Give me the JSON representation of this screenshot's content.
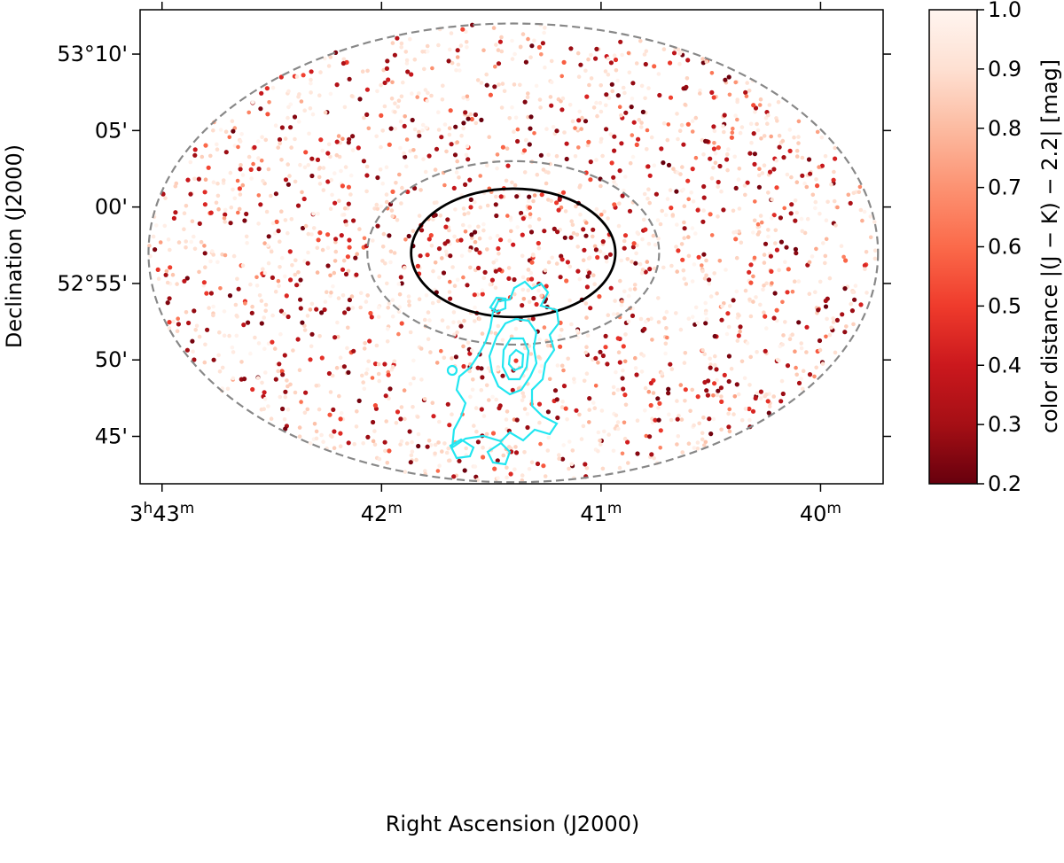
{
  "chart_data": {
    "type": "scatter",
    "projection": "sky (RA/Dec, J2000)",
    "xlabel": "Right Ascension (J2000)",
    "ylabel": "Declination (J2000)",
    "colorbar_label": "color distance |(J − K) − 2.2| [mag]",
    "colorbar": {
      "range": [
        0.2,
        1.0
      ],
      "ticks": [
        0.2,
        0.3,
        0.4,
        0.5,
        0.6,
        0.7,
        0.8,
        0.9,
        1.0
      ],
      "tick_labels": [
        "0.2",
        "0.3",
        "0.4",
        "0.5",
        "0.6",
        "0.7",
        "0.8",
        "0.9",
        "1.0"
      ],
      "colormap": "Reds (reversed)",
      "color_low": "#67000d",
      "color_high": "#fff5f0"
    },
    "ra_range_min": [
      43.1,
      39.715
    ],
    "dec_range_arcmin": [
      -18.1,
      12.9
    ],
    "dec_reference": "53°00'",
    "x_ticks": [
      {
        "value_min": 43,
        "label": "3h43m",
        "main": "3",
        "sup": "h",
        "main2": "43",
        "sup2": "m"
      },
      {
        "value_min": 42,
        "label": "42m",
        "main": "42",
        "sup": "m"
      },
      {
        "value_min": 41,
        "label": "41m",
        "main": "41",
        "sup": "m"
      },
      {
        "value_min": 40,
        "label": "40m",
        "main": "40",
        "sup": "m"
      }
    ],
    "y_ticks": [
      {
        "value_arcmin": 10,
        "label": "53°10'"
      },
      {
        "value_arcmin": 5,
        "label": "05'"
      },
      {
        "value_arcmin": 0,
        "label": "00'"
      },
      {
        "value_arcmin": -5,
        "label": "52°55'"
      },
      {
        "value_arcmin": -10,
        "label": "50'"
      },
      {
        "value_arcmin": -15,
        "label": "45'"
      }
    ],
    "center": {
      "ra_min": 41.4,
      "dec_arcmin": -3.0
    },
    "circles": [
      {
        "name": "outer-annulus",
        "radius_arcmin": 15,
        "style": "dashed",
        "color": "#888888"
      },
      {
        "name": "inner-annulus",
        "radius_arcmin": 6,
        "style": "dashed",
        "color": "#888888"
      },
      {
        "name": "cluster-radius",
        "radius_arcmin": 4.2,
        "style": "solid",
        "color": "#000000"
      }
    ],
    "contour_color": "#22e6f0",
    "scatter": {
      "n_points_approx": 2200,
      "field": "uniform within outer dashed circle",
      "note": "each point colored by its color distance; values 0.2–1.0 mag"
    }
  }
}
